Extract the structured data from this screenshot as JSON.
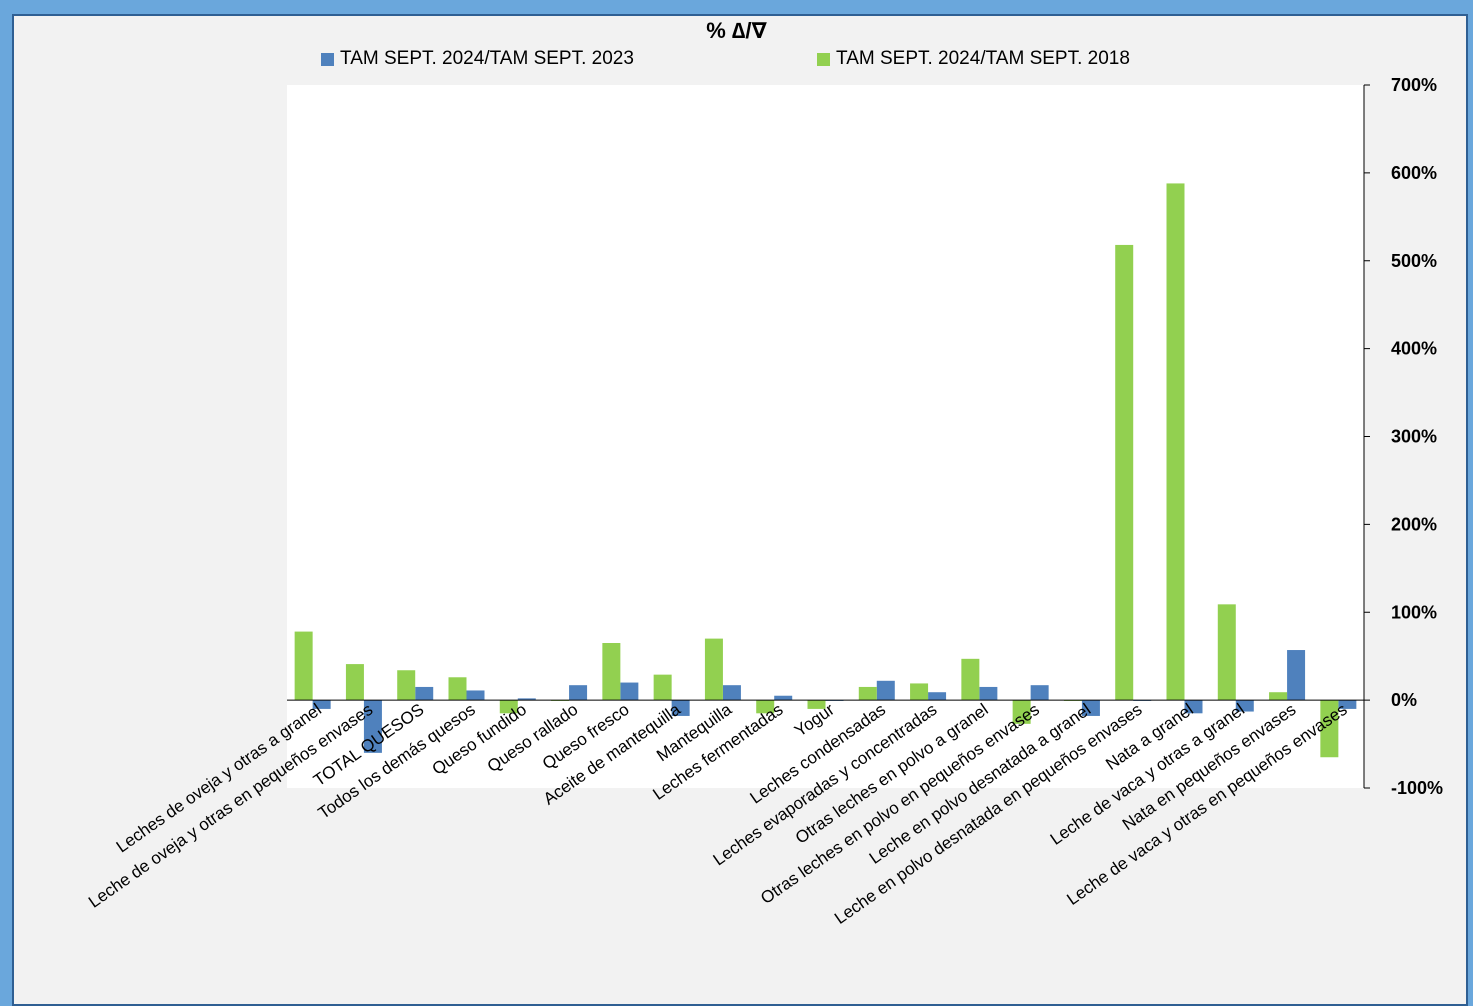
{
  "chart_data": {
    "type": "bar",
    "title": "% ∆/∇",
    "series": [
      {
        "name": "TAM SEPT. 2024/TAM SEPT. 2023",
        "color": "#4f81bd",
        "values": [
          -10,
          -60,
          15,
          11,
          2,
          17,
          20,
          -18,
          17,
          5,
          0,
          22,
          9,
          15,
          17,
          -18,
          0,
          -15,
          -13,
          57,
          -10
        ]
      },
      {
        "name": "TAM SEPT. 2024/TAM SEPT. 2018",
        "color": "#92d050",
        "values": [
          78,
          41,
          34,
          26,
          -15,
          0,
          65,
          29,
          70,
          -15,
          -10,
          15,
          19,
          47,
          -27,
          0,
          518,
          588,
          109,
          9,
          -65
        ]
      }
    ],
    "categories": [
      "Leches de oveja y otras a granel",
      "Leche de oveja y otras en pequeños envases",
      "TOTAL QUESOS",
      "Todos los demás quesos",
      "Queso fundido",
      "Queso rallado",
      "Queso fresco",
      "Aceite de mantequilla",
      "Mantequilla",
      "Leches fermentadas",
      "Yogur",
      "Leches condensadas",
      "Leches evaporadas y concentradas",
      "Otras leches en polvo a granel",
      "Otras leches en polvo en pequeños envases",
      "Leche en polvo desnatada a granel",
      "Leche en polvo desnatada en pequeños envases",
      "Nata a granel",
      "Leche de vaca y otras a granel",
      "Nata en pequeños envases",
      "Leche de vaca y otras en pequeños envases"
    ],
    "ylim": [
      -100,
      700
    ],
    "yticks": [
      "-100%",
      "0%",
      "100%",
      "200%",
      "300%",
      "400%",
      "500%",
      "600%",
      "700%"
    ],
    "ytick_values": [
      -100,
      0,
      100,
      200,
      300,
      400,
      500,
      600,
      700
    ],
    "ylabel": "",
    "xlabel": "",
    "grid": false,
    "legend_position": "top"
  }
}
